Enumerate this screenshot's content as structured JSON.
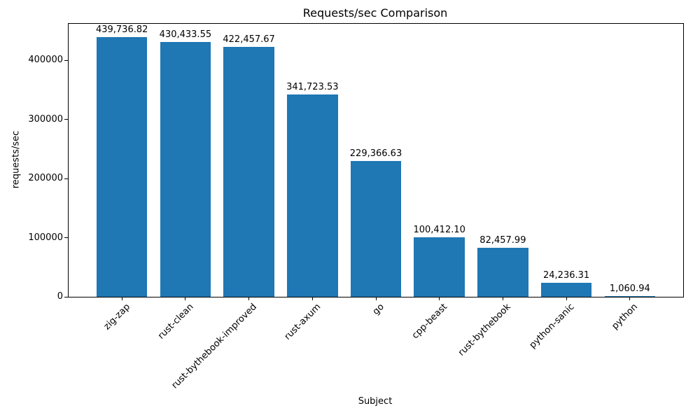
{
  "chart_data": {
    "type": "bar",
    "title": "Requests/sec Comparison",
    "xlabel": "Subject",
    "ylabel": "requests/sec",
    "categories": [
      "zig-zap",
      "rust-clean",
      "rust-bythebook-improved",
      "rust-axum",
      "go",
      "cpp-beast",
      "rust-bythebook",
      "python-sanic",
      "python"
    ],
    "values": [
      439736.82,
      430433.55,
      422457.67,
      341723.53,
      229366.63,
      100412.1,
      82457.99,
      24236.31,
      1060.94
    ],
    "value_labels": [
      "439,736.82",
      "430,433.55",
      "422,457.67",
      "341,723.53",
      "229,366.63",
      "100,412.10",
      "82,457.99",
      "24,236.31",
      "1,060.94"
    ],
    "yticks": [
      0,
      100000,
      200000,
      300000,
      400000
    ],
    "ylim": [
      0,
      461723.66
    ],
    "bar_color": "#1f77b4",
    "bar_width_fraction": 0.8,
    "grid": "off",
    "legend": "none",
    "x_tick_label_rotation_deg": 45
  }
}
